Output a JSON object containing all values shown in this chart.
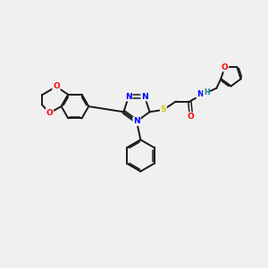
{
  "bg_color": "#f0f0f0",
  "bond_color": "#1a1a1a",
  "N_color": "#0000ff",
  "O_color": "#ff0000",
  "S_color": "#cccc00",
  "H_color": "#008080",
  "figsize": [
    3.0,
    3.0
  ],
  "dpi": 100,
  "xlim": [
    0,
    10
  ],
  "ylim": [
    0,
    10
  ]
}
